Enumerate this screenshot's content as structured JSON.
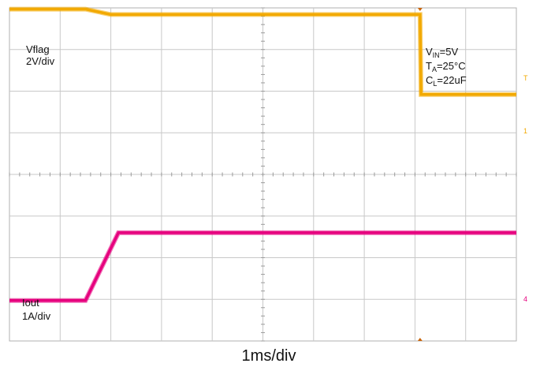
{
  "chart_data": {
    "type": "line",
    "x_divisions": 10,
    "y_divisions": 8,
    "grid": true,
    "timebase": "1ms/div",
    "series": [
      {
        "name": "Vflag",
        "color": "#f2a900",
        "scale": "2V/div",
        "points": [
          [
            0,
            7.97
          ],
          [
            1.5,
            7.97
          ],
          [
            2.0,
            7.84
          ],
          [
            8.1,
            7.84
          ],
          [
            8.12,
            5.92
          ],
          [
            10,
            5.92
          ]
        ]
      },
      {
        "name": "Iout",
        "color": "#e6007e",
        "scale": "1A/div",
        "points": [
          [
            0,
            0.97
          ],
          [
            1.5,
            0.97
          ],
          [
            2.15,
            2.6
          ],
          [
            10,
            2.6
          ]
        ]
      }
    ],
    "annotations": {
      "vin": {
        "main": "V",
        "sub": "IN",
        "rest": "=5V"
      },
      "ta": {
        "main": "T",
        "sub": "A",
        "rest": "=25°C"
      },
      "cl": {
        "main": "C",
        "sub": "L",
        "rest": "=22uF"
      }
    },
    "labels": {
      "vflag_name": "Vflag",
      "vflag_scale": "2V/div",
      "iout_name": "Iout",
      "iout_scale": "1A/div"
    },
    "markers": [
      "T",
      "1",
      "4"
    ]
  }
}
